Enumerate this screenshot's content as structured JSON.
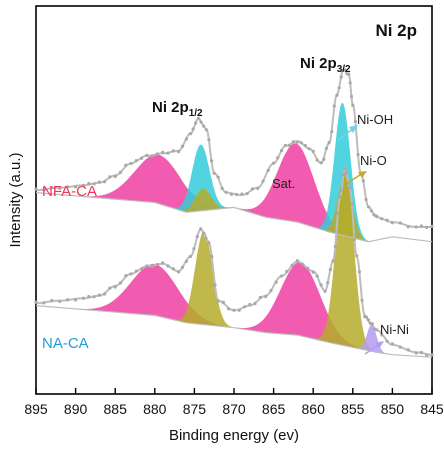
{
  "chart_data": {
    "type": "line",
    "title": "Ni 2p",
    "xlabel": "Binding energy (ev)",
    "ylabel": "Intensity (a.u.)",
    "xlim": [
      895,
      845
    ],
    "x_reversed": true,
    "x_ticks": [
      895,
      890,
      885,
      880,
      875,
      870,
      865,
      860,
      855,
      850,
      845
    ],
    "y_ticks_visible": false,
    "colors": {
      "raw": "#a8a8a8",
      "envelope": "#bdbdbd",
      "pink": "#ee3fa2",
      "cyan": "#34cdda",
      "olive": "#b5ac2b",
      "violet": "#b49cf0",
      "nfa_label": "#f0345a",
      "na_label": "#1e9bdc",
      "ni_oh_arrow": "#6fd5e0",
      "ni_o_arrow": "#c8a82a",
      "ni_ni_arrow": "#b49cf0"
    },
    "series": [
      {
        "name": "NFA-CA",
        "baseline": [
          [
            895,
            7.6
          ],
          [
            880,
            7.4
          ],
          [
            876,
            7.2
          ],
          [
            870,
            7.3
          ],
          [
            866,
            7.1
          ],
          [
            862,
            7.0
          ],
          [
            858,
            6.8
          ],
          [
            853,
            6.6
          ],
          [
            850,
            6.7
          ],
          [
            845,
            6.6
          ]
        ],
        "raw": [
          [
            895,
            7.65
          ],
          [
            892,
            7.7
          ],
          [
            889,
            7.75
          ],
          [
            887,
            7.8
          ],
          [
            885,
            7.95
          ],
          [
            883,
            8.2
          ],
          [
            881,
            8.35
          ],
          [
            879,
            8.4
          ],
          [
            877,
            8.45
          ],
          [
            875.5,
            8.8
          ],
          [
            874.5,
            9.1
          ],
          [
            873.5,
            8.9
          ],
          [
            872.5,
            8.0
          ],
          [
            871,
            7.6
          ],
          [
            869,
            7.55
          ],
          [
            867,
            7.7
          ],
          [
            865,
            8.2
          ],
          [
            863.5,
            8.55
          ],
          [
            862,
            8.65
          ],
          [
            860.5,
            8.5
          ],
          [
            859,
            8.2
          ],
          [
            858,
            8.6
          ],
          [
            857,
            9.6
          ],
          [
            856.2,
            10.1
          ],
          [
            855.5,
            10.0
          ],
          [
            855,
            9.4
          ],
          [
            854,
            8.0
          ],
          [
            853,
            7.3
          ],
          [
            852,
            7.1
          ],
          [
            850,
            7.0
          ],
          [
            847,
            6.9
          ],
          [
            845,
            6.9
          ]
        ],
        "peaks": [
          {
            "center": 879.5,
            "height": 1.0,
            "sigma": 3.0,
            "color": "pink"
          },
          {
            "center": 874.2,
            "height": 1.35,
            "sigma": 1.1,
            "color": "cyan"
          },
          {
            "center": 873.9,
            "height": 0.45,
            "sigma": 1.0,
            "color": "olive"
          },
          {
            "center": 862.2,
            "height": 1.6,
            "sigma": 2.3,
            "color": "pink"
          },
          {
            "center": 856.3,
            "height": 2.7,
            "sigma": 1.0,
            "color": "cyan"
          },
          {
            "center": 856.0,
            "height": 1.2,
            "sigma": 0.9,
            "color": "olive"
          }
        ]
      },
      {
        "name": "NA-CA",
        "baseline": [
          [
            895,
            5.3
          ],
          [
            880,
            5.1
          ],
          [
            876,
            4.95
          ],
          [
            870,
            4.85
          ],
          [
            866,
            4.75
          ],
          [
            862,
            4.7
          ],
          [
            858,
            4.55
          ],
          [
            852,
            4.35
          ],
          [
            850,
            4.3
          ],
          [
            845,
            4.25
          ]
        ],
        "raw": [
          [
            895,
            5.35
          ],
          [
            892,
            5.4
          ],
          [
            889,
            5.45
          ],
          [
            887,
            5.5
          ],
          [
            885,
            5.7
          ],
          [
            883,
            5.95
          ],
          [
            881,
            6.1
          ],
          [
            879,
            6.15
          ],
          [
            877,
            6.0
          ],
          [
            875.5,
            6.3
          ],
          [
            874.2,
            6.85
          ],
          [
            873.2,
            6.6
          ],
          [
            872,
            5.4
          ],
          [
            870,
            5.2
          ],
          [
            868,
            5.3
          ],
          [
            866,
            5.5
          ],
          [
            864,
            5.9
          ],
          [
            862,
            6.2
          ],
          [
            860,
            6.0
          ],
          [
            858.5,
            5.6
          ],
          [
            857.5,
            6.2
          ],
          [
            856.6,
            7.5
          ],
          [
            856,
            8.1
          ],
          [
            855.4,
            7.7
          ],
          [
            854.5,
            6.3
          ],
          [
            853.5,
            5.1
          ],
          [
            852.8,
            4.95
          ],
          [
            852,
            4.8
          ],
          [
            850,
            4.5
          ],
          [
            847,
            4.35
          ],
          [
            845,
            4.3
          ]
        ],
        "peaks": [
          {
            "center": 880.0,
            "height": 1.05,
            "sigma": 3.0,
            "color": "pink"
          },
          {
            "center": 873.8,
            "height": 1.9,
            "sigma": 1.1,
            "color": "olive"
          },
          {
            "center": 861.6,
            "height": 1.5,
            "sigma": 2.5,
            "color": "pink"
          },
          {
            "center": 856.0,
            "height": 3.6,
            "sigma": 1.1,
            "color": "olive"
          },
          {
            "center": 852.6,
            "height": 0.55,
            "sigma": 0.6,
            "color": "violet"
          }
        ]
      }
    ],
    "annotations": {
      "ni2p12_main": "Ni 2p",
      "ni2p12_sub": "1/2",
      "ni2p32_main": "Ni 2p",
      "ni2p32_sub": "3/2",
      "sat": "Sat.",
      "ni_oh": "Ni-OH",
      "ni_o": "Ni-O",
      "ni_ni": "Ni-Ni"
    }
  }
}
